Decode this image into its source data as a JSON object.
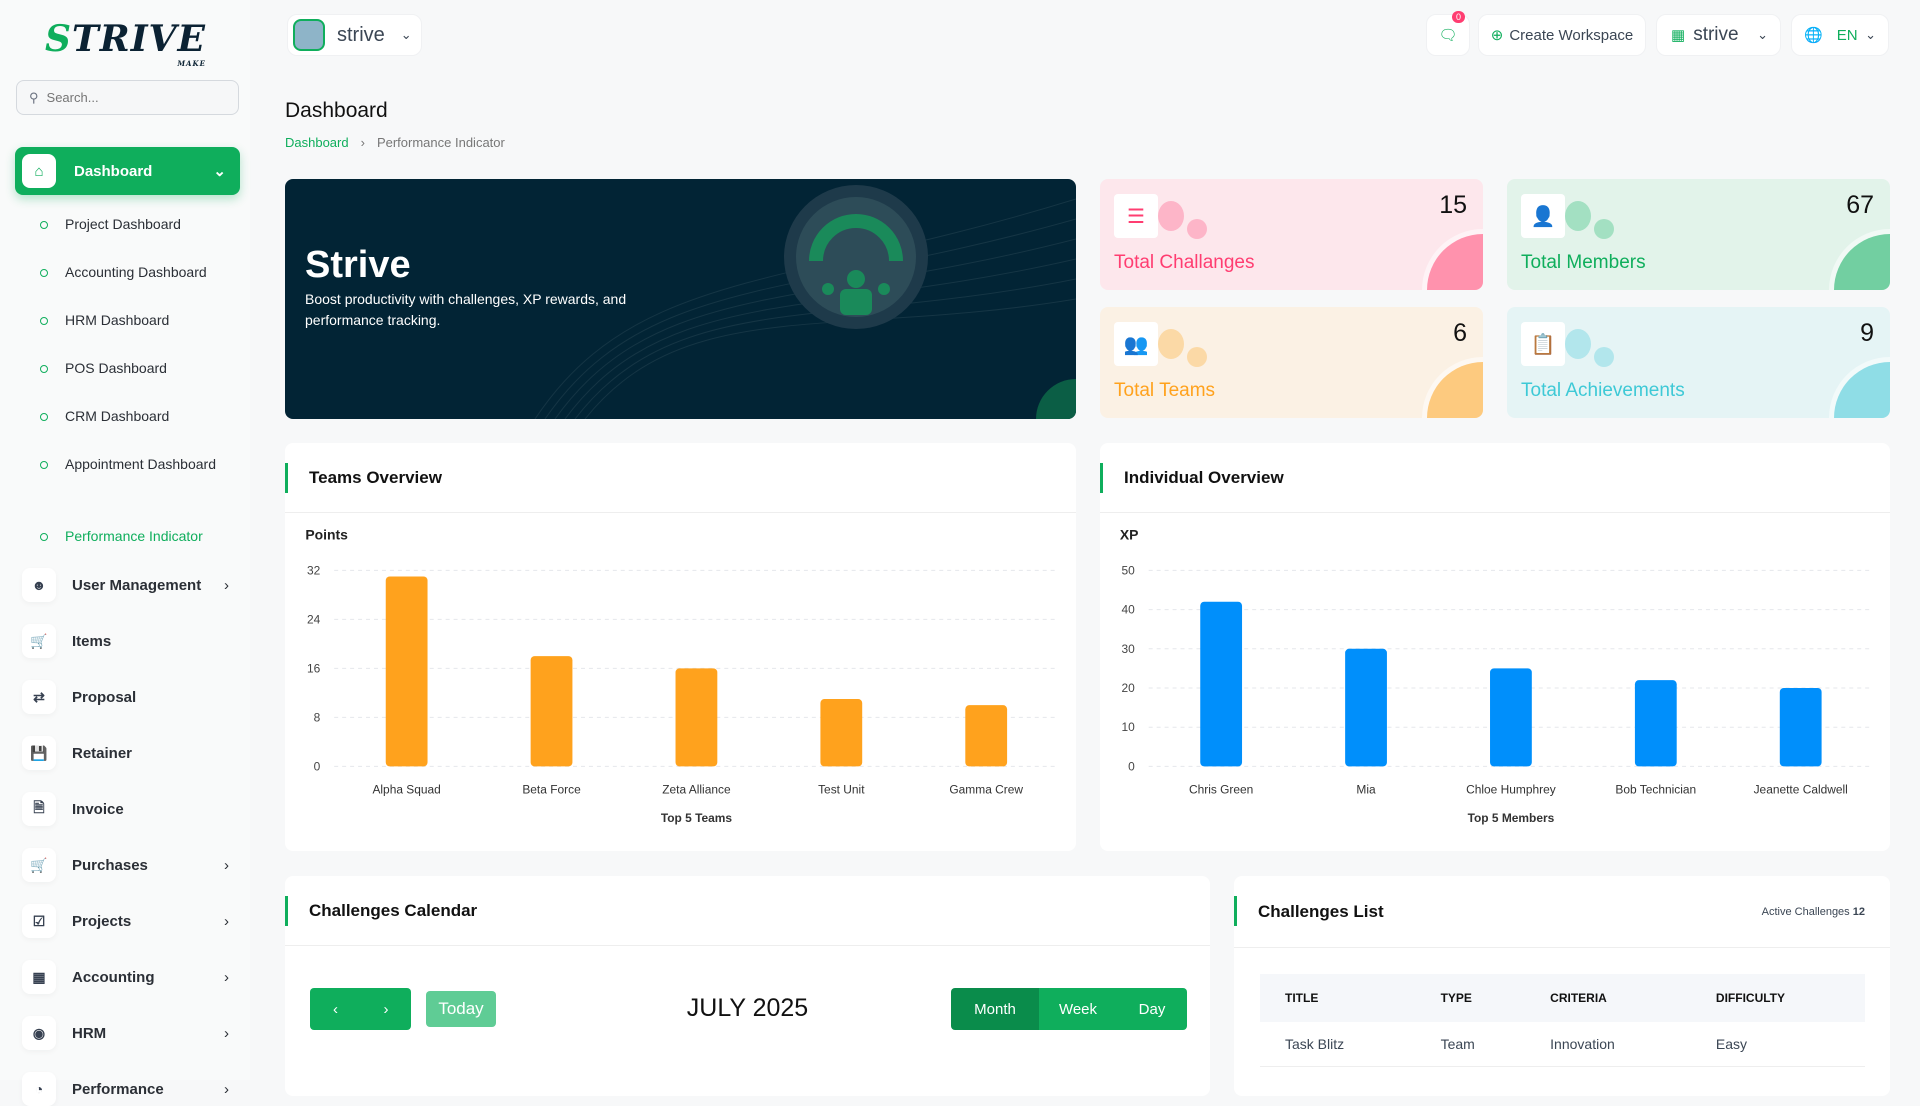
{
  "brand": {
    "logo_text": "STRIVE",
    "logo_sub": "MAKE"
  },
  "search": {
    "placeholder": "Search..."
  },
  "sidebar": {
    "active": {
      "label": "Dashboard",
      "icon": "home-icon"
    },
    "sub_items": [
      "Project Dashboard",
      "Accounting Dashboard",
      "HRM Dashboard",
      "POS Dashboard",
      "CRM Dashboard",
      "Appointment Dashboard",
      "Performance Indicator"
    ],
    "items": [
      {
        "label": "User Management",
        "icon": "users-icon",
        "chevron": true
      },
      {
        "label": "Items",
        "icon": "cart-icon",
        "chevron": false
      },
      {
        "label": "Proposal",
        "icon": "swap-icon",
        "chevron": false
      },
      {
        "label": "Retainer",
        "icon": "save-icon",
        "chevron": false
      },
      {
        "label": "Invoice",
        "icon": "file-icon",
        "chevron": false
      },
      {
        "label": "Purchases",
        "icon": "cart-icon",
        "chevron": true
      },
      {
        "label": "Projects",
        "icon": "checkbox-icon",
        "chevron": true
      },
      {
        "label": "Accounting",
        "icon": "apps-icon",
        "chevron": true
      },
      {
        "label": "HRM",
        "icon": "user-focus-icon",
        "chevron": true
      },
      {
        "label": "Performance",
        "icon": "gauge-icon",
        "chevron": true
      }
    ]
  },
  "topbar": {
    "workspace": "strive",
    "notifications": "0",
    "create_workspace": "Create Workspace",
    "company": "strive",
    "language": "EN"
  },
  "page": {
    "title": "Dashboard",
    "breadcrumb": [
      "Dashboard",
      "Performance Indicator"
    ]
  },
  "banner": {
    "title": "Strive",
    "text": "Boost productivity with challenges, XP rewards, and performance tracking."
  },
  "stats": [
    {
      "label": "Total Challanges",
      "value": "15",
      "icon": "checklist-icon",
      "color": "#ff3d71",
      "bg": "#fde7ec",
      "dot": "#fdb5c8",
      "blob": "#ff92ad"
    },
    {
      "label": "Total Members",
      "value": "67",
      "icon": "user-icon",
      "color": "#0fae5c",
      "bg": "#e2f3ea",
      "dot": "#a3e0c2",
      "blob": "#72cfa1"
    },
    {
      "label": "Total Teams",
      "value": "6",
      "icon": "team-icon",
      "color": "#ffa21d",
      "bg": "#fbf1e4",
      "dot": "#fbd9a6",
      "blob": "#fdca7f"
    },
    {
      "label": "Total Achievements",
      "value": "9",
      "icon": "clipboard-check-icon",
      "color": "#3ec9d6",
      "bg": "#e5f4f5",
      "dot": "#b2e6ec",
      "blob": "#8fdde6"
    }
  ],
  "chart_data": [
    {
      "type": "bar",
      "title": "Teams Overview",
      "ylabel": "Points",
      "xlabel": "Top 5 Teams",
      "categories": [
        "Alpha Squad",
        "Beta Force",
        "Zeta Alliance",
        "Test Unit",
        "Gamma Crew"
      ],
      "values": [
        31,
        18,
        16,
        11,
        10
      ],
      "ylim": [
        0,
        32
      ],
      "yticks": [
        0,
        8,
        16,
        24,
        32
      ],
      "color": "#ffa21d",
      "grid": true
    },
    {
      "type": "bar",
      "title": "Individual Overview",
      "ylabel": "XP",
      "xlabel": "Top 5 Members",
      "categories": [
        "Chris Green",
        "Mia",
        "Chloe Humphrey",
        "Bob Technician",
        "Jeanette Caldwell"
      ],
      "values": [
        42,
        30,
        25,
        22,
        20
      ],
      "ylim": [
        0,
        50
      ],
      "yticks": [
        0,
        10,
        20,
        30,
        40,
        50
      ],
      "color": "#008ffb",
      "grid": true
    }
  ],
  "calendar": {
    "title": "Challenges Calendar",
    "today": "Today",
    "month": "JULY 2025",
    "views": [
      "Month",
      "Week",
      "Day"
    ],
    "active_view": "Month"
  },
  "challenges": {
    "title": "Challenges List",
    "active_label": "Active Challenges",
    "active_count": "12",
    "columns": [
      "TITLE",
      "TYPE",
      "CRITERIA",
      "DIFFICULTY"
    ],
    "rows": [
      [
        "Task Blitz",
        "Team",
        "Innovation",
        "Easy"
      ]
    ]
  }
}
